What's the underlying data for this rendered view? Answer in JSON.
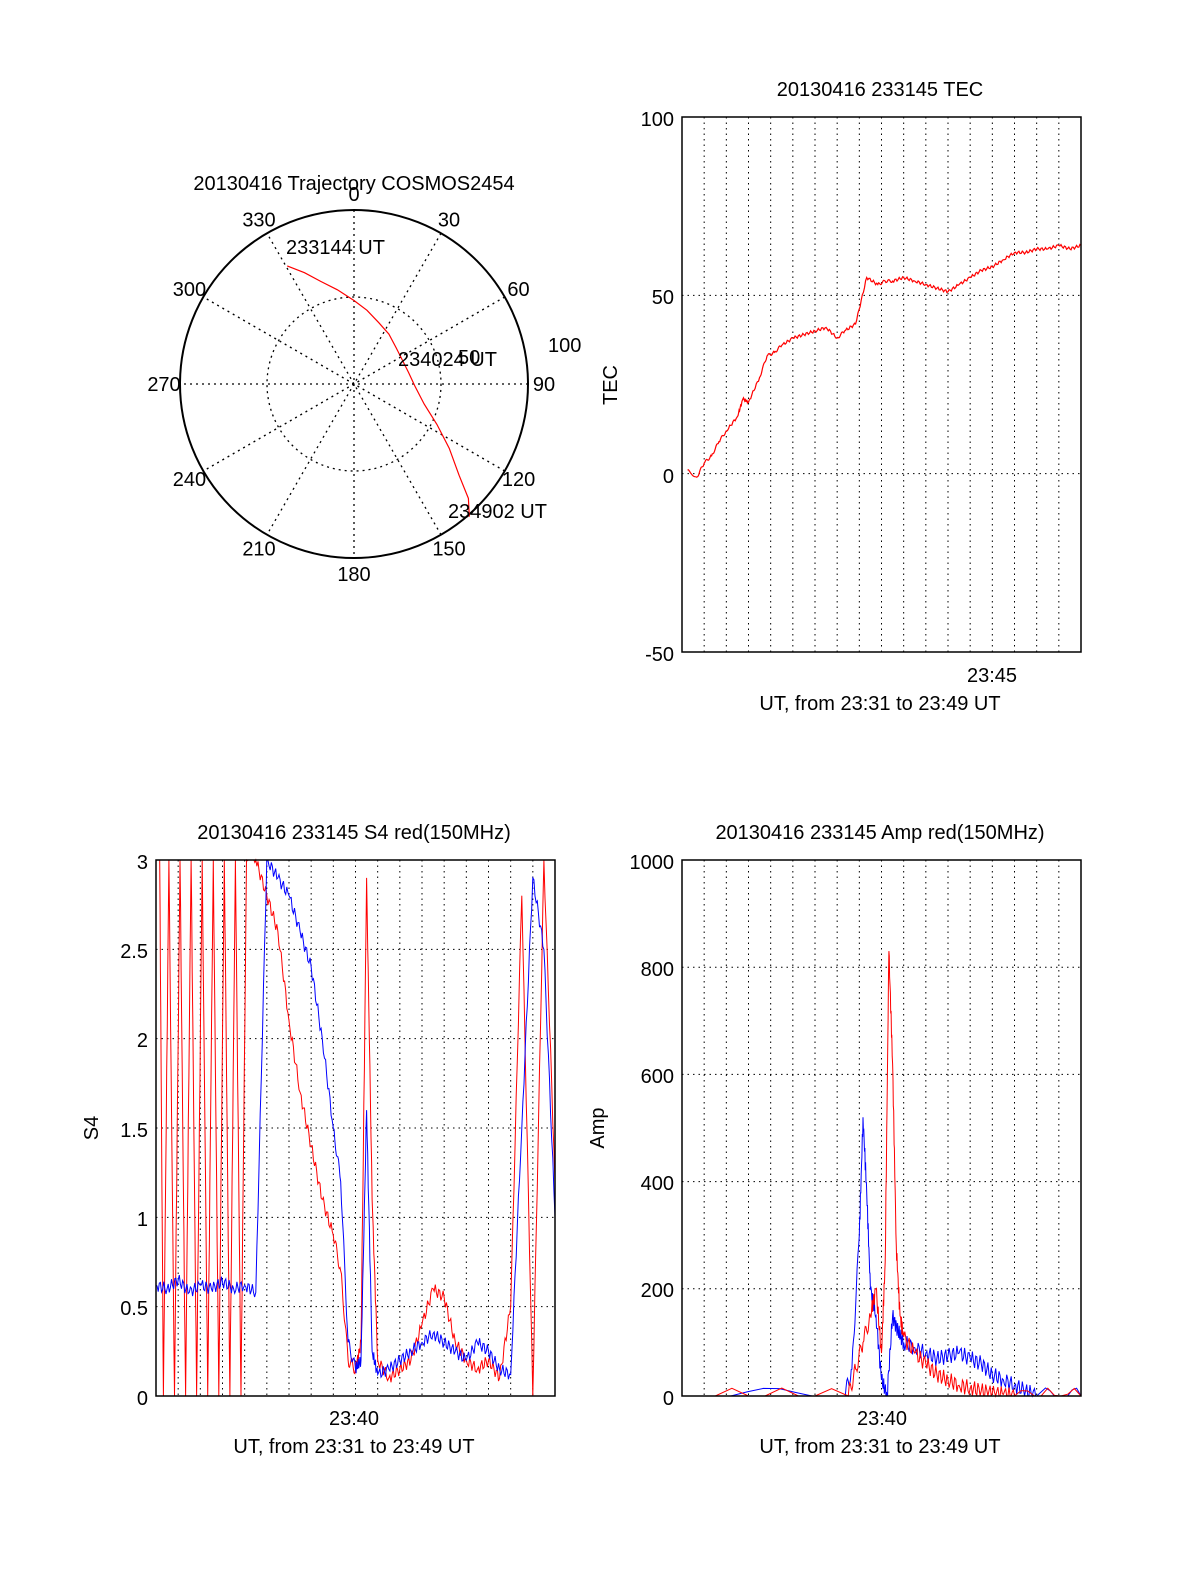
{
  "colors": {
    "red": "#ff0000",
    "blue": "#0000ff",
    "axis": "#000000",
    "grid": "#000000",
    "background": "#ffffff"
  },
  "chart_data": [
    {
      "id": "trajectory",
      "type": "polar",
      "title": "20130416 Trajectory COSMOS2454",
      "azimuth_labels": [
        "0",
        "30",
        "60",
        "90",
        "120",
        "150",
        "180",
        "210",
        "240",
        "270",
        "300",
        "330"
      ],
      "radius_labels": [
        "50",
        "100"
      ],
      "series": [
        {
          "color": "#ff0000",
          "points": [
            [
              330.5,
              78
            ],
            [
              336,
              70
            ],
            [
              342,
              62
            ],
            [
              350,
              55
            ],
            [
              0,
              48
            ],
            [
              10,
              43
            ],
            [
              22,
              38
            ],
            [
              35,
              35
            ],
            [
              49,
              32
            ],
            [
              64,
              31
            ],
            [
              78,
              32
            ],
            [
              92,
              35
            ],
            [
              106,
              42
            ],
            [
              116,
              53
            ],
            [
              124,
              66
            ],
            [
              131,
              80
            ],
            [
              135,
              93
            ],
            [
              139,
              101
            ]
          ]
        }
      ],
      "annotations": [
        {
          "text": "233144 UT",
          "at": "start"
        },
        {
          "text": "234024 UT",
          "at": "middle"
        },
        {
          "text": "234902 UT",
          "at": "end"
        }
      ]
    },
    {
      "id": "tec",
      "type": "line",
      "title": "20130416 233145 TEC",
      "xlabel": "UT, from 23:31 to 23:49 UT",
      "ylabel": "TEC",
      "x_tick_labels": [
        "23:45"
      ],
      "y_tick_labels": [
        "100",
        "50",
        "0",
        "-50"
      ],
      "ylim": [
        -50,
        100
      ],
      "xlim": [
        "23:31:30",
        "23:49:30"
      ],
      "grid": true,
      "series": [
        {
          "color": "#ff0000",
          "x": [
            "23:31:45",
            "23:32:10",
            "23:32:30",
            "23:32:50",
            "23:33:10",
            "23:33:30",
            "23:34:00",
            "23:34:15",
            "23:34:30",
            "23:35:00",
            "23:35:20",
            "23:35:40",
            "23:36:00",
            "23:36:30",
            "23:37:00",
            "23:37:30",
            "23:38:00",
            "23:38:30",
            "23:38:50",
            "23:39:20",
            "23:39:50",
            "23:40:20",
            "23:40:40",
            "23:41:00",
            "23:41:30",
            "23:42:00",
            "23:42:30",
            "23:43:00",
            "23:43:30",
            "23:44:00",
            "23:44:30",
            "23:45:00",
            "23:45:30",
            "23:46:00",
            "23:46:30",
            "23:47:00",
            "23:47:30",
            "23:48:00",
            "23:48:30",
            "23:49:00",
            "23:49:30"
          ],
          "y": [
            1,
            -1,
            3,
            5,
            9,
            12,
            16,
            21,
            20,
            27,
            33,
            34,
            36,
            38,
            39,
            40,
            41,
            38,
            40,
            42,
            55,
            53,
            54,
            54,
            55,
            54,
            53,
            52,
            51,
            53,
            55,
            57,
            58,
            60,
            62,
            62,
            63,
            63,
            64,
            63,
            64
          ]
        }
      ]
    },
    {
      "id": "s4",
      "type": "line",
      "title": "20130416 233145 S4 red(150MHz)",
      "xlabel": "UT, from 23:31 to 23:49 UT",
      "ylabel": "S4",
      "x_tick_labels": [
        "23:40"
      ],
      "y_tick_labels": [
        "3",
        "2.5",
        "2",
        "1.5",
        "1",
        "0.5",
        "0"
      ],
      "ylim": [
        0,
        3
      ],
      "xlim": [
        "23:31:00",
        "23:49:00"
      ],
      "grid": true,
      "series": [
        {
          "color": "#ff0000",
          "x": [
            "23:31:10",
            "23:31:20",
            "23:31:35",
            "23:31:50",
            "23:32:05",
            "23:32:20",
            "23:32:35",
            "23:32:50",
            "23:33:05",
            "23:33:20",
            "23:33:35",
            "23:33:50",
            "23:34:05",
            "23:34:20",
            "23:34:35",
            "23:34:50",
            "23:35:05",
            "23:35:30",
            "23:36:00",
            "23:36:30",
            "23:37:00",
            "23:37:30",
            "23:38:00",
            "23:38:30",
            "23:39:00",
            "23:39:20",
            "23:39:40",
            "23:40:00",
            "23:40:15",
            "23:40:30",
            "23:40:45",
            "23:41:00",
            "23:41:30",
            "23:42:00",
            "23:42:30",
            "23:43:00",
            "23:43:30",
            "23:44:00",
            "23:44:30",
            "23:45:00",
            "23:45:30",
            "23:46:00",
            "23:46:30",
            "23:47:00",
            "23:47:30",
            "23:48:00",
            "23:48:30",
            "23:49:00"
          ],
          "y": [
            3,
            0,
            3,
            0,
            3,
            0,
            3,
            0,
            3,
            0,
            3,
            0,
            3,
            0,
            3,
            0,
            3,
            3,
            2.8,
            2.6,
            2.1,
            1.7,
            1.4,
            1.1,
            0.9,
            0.7,
            0.2,
            0.15,
            0.3,
            2.9,
            1.1,
            0.2,
            0.1,
            0.15,
            0.2,
            0.4,
            0.6,
            0.55,
            0.3,
            0.2,
            0.15,
            0.2,
            0.1,
            0.5,
            2.8,
            0,
            3,
            1.2
          ]
        },
        {
          "color": "#0000ff",
          "x": [
            "23:31:00",
            "23:31:30",
            "23:32:00",
            "23:32:30",
            "23:33:00",
            "23:33:30",
            "23:34:00",
            "23:34:30",
            "23:35:00",
            "23:35:30",
            "23:36:00",
            "23:36:30",
            "23:37:00",
            "23:37:30",
            "23:38:00",
            "23:38:30",
            "23:39:00",
            "23:39:20",
            "23:39:40",
            "23:40:00",
            "23:40:15",
            "23:40:30",
            "23:40:45",
            "23:41:00",
            "23:41:30",
            "23:42:00",
            "23:42:30",
            "23:43:00",
            "23:43:30",
            "23:44:00",
            "23:44:30",
            "23:45:00",
            "23:45:30",
            "23:46:00",
            "23:46:30",
            "23:47:00",
            "23:47:30",
            "23:48:00",
            "23:48:30",
            "23:49:00"
          ],
          "y": [
            0.62,
            0.6,
            0.65,
            0.58,
            0.62,
            0.6,
            0.64,
            0.6,
            0.62,
            0.58,
            3,
            2.9,
            2.8,
            2.6,
            2.4,
            2.0,
            1.5,
            1.2,
            0.3,
            0.15,
            0.2,
            1.6,
            0.25,
            0.12,
            0.15,
            0.2,
            0.25,
            0.3,
            0.35,
            0.3,
            0.25,
            0.2,
            0.3,
            0.25,
            0.15,
            0.12,
            1.5,
            2.9,
            2.5,
            1.0
          ]
        }
      ]
    },
    {
      "id": "amp",
      "type": "line",
      "title": "20130416 233145 Amp red(150MHz)",
      "xlabel": "UT, from 23:31 to 23:49 UT",
      "ylabel": "Amp",
      "x_tick_labels": [
        "23:40"
      ],
      "y_tick_labels": [
        "1000",
        "800",
        "600",
        "400",
        "200",
        "0"
      ],
      "ylim": [
        0,
        1000
      ],
      "xlim": [
        "23:31:00",
        "23:49:00"
      ],
      "grid": true,
      "series": [
        {
          "color": "#0000ff",
          "x": [
            "23:31:00",
            "23:38:20",
            "23:38:40",
            "23:39:00",
            "23:39:10",
            "23:39:20",
            "23:39:30",
            "23:39:45",
            "23:40:00",
            "23:40:15",
            "23:40:30",
            "23:40:45",
            "23:41:00",
            "23:41:30",
            "23:42:00",
            "23:42:30",
            "23:43:00",
            "23:43:30",
            "23:44:00",
            "23:44:30",
            "23:45:00",
            "23:45:30",
            "23:46:00",
            "23:46:30",
            "23:47:00",
            "23:49:00"
          ],
          "y": [
            0,
            0,
            50,
            300,
            520,
            380,
            200,
            150,
            30,
            0,
            150,
            120,
            100,
            90,
            80,
            70,
            75,
            80,
            70,
            60,
            40,
            30,
            20,
            10,
            0,
            0
          ]
        },
        {
          "color": "#ff0000",
          "x": [
            "23:31:00",
            "23:38:30",
            "23:38:50",
            "23:39:10",
            "23:39:30",
            "23:39:45",
            "23:40:00",
            "23:40:10",
            "23:40:20",
            "23:40:30",
            "23:40:40",
            "23:40:50",
            "23:41:00",
            "23:41:30",
            "23:42:00",
            "23:42:30",
            "23:43:00",
            "23:43:30",
            "23:44:00",
            "23:44:30",
            "23:45:00",
            "23:45:30",
            "23:46:00",
            "23:49:00"
          ],
          "y": [
            0,
            0,
            50,
            100,
            150,
            200,
            80,
            250,
            830,
            620,
            280,
            150,
            110,
            80,
            60,
            40,
            30,
            20,
            15,
            10,
            5,
            3,
            0,
            0
          ]
        }
      ]
    }
  ]
}
